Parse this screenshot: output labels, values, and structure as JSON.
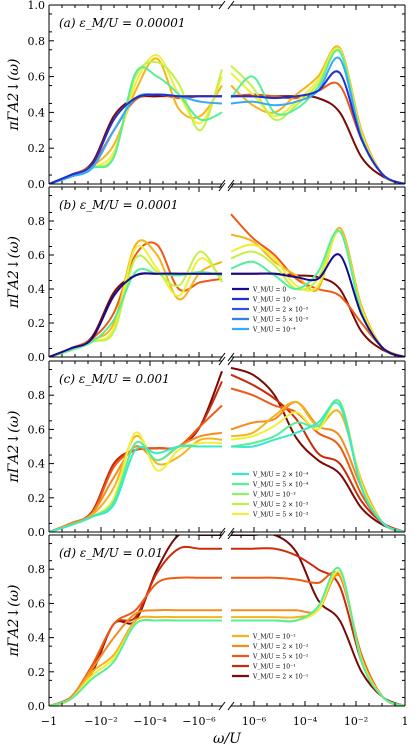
{
  "chart_data": {
    "type": "line",
    "xlabel": "ω/U",
    "ylabel": "πΓA_{2↓}(ω)",
    "ylim": [
      0.0,
      1.0
    ],
    "x_scale": "symmetric-log (split axis with break)",
    "x_ticks_left": [
      "−1",
      "−10⁻²",
      "−10⁻⁴",
      "−10⁻⁶"
    ],
    "x_ticks_right": [
      "10⁻⁶",
      "10⁻⁴",
      "10⁻²",
      "1"
    ],
    "y_ticks_top": [
      "0.0",
      "0.2",
      "0.4",
      "0.6",
      "0.8",
      "1.0"
    ],
    "y_ticks": [
      "0.0",
      "0.2",
      "0.4",
      "0.6",
      "0.8"
    ],
    "series_colors": {
      "V_M/U = 0": "#1a0a8c",
      "V_M/U = 10⁻⁵": "#1f2fd0",
      "V_M/U = 2 × 10⁻⁵": "#2a55e6",
      "V_M/U = 5 × 10⁻⁵": "#2f80f0",
      "V_M/U = 10⁻⁴": "#3aa8f5",
      "V_M/U = 2 × 10⁻⁴": "#3be8c8",
      "V_M/U = 5 × 10⁻⁴": "#58ee9a",
      "V_M/U = 10⁻³": "#8cf26a",
      "V_M/U = 2 × 10⁻³": "#c2f24a",
      "V_M/U = 5 × 10⁻³": "#f0f03a",
      "V_M/U = 10⁻²": "#f5b41e",
      "V_M/U = 2 × 10⁻²": "#f58c1e",
      "V_M/U = 5 × 10⁻²": "#ee5a14",
      "V_M/U = 10⁻¹": "#cc2a08",
      "V_M/U = 2 × 10⁻¹": "#7a0a06"
    },
    "panels": [
      {
        "label": "(a) ε_M/U = 0.00001",
        "legend": [],
        "series": [
          {
            "color": "#7a0a06",
            "left": [
              0.0,
              0.05,
              0.12,
              0.38,
              0.48,
              0.49,
              0.49,
              0.49,
              0.49
            ],
            "right": [
              0.49,
              0.49,
              0.49,
              0.49,
              0.48,
              0.4,
              0.15,
              0.04,
              0.0
            ]
          },
          {
            "color": "#ee5a14",
            "left": [
              0.0,
              0.05,
              0.11,
              0.3,
              0.47,
              0.5,
              0.48,
              0.49,
              0.49
            ],
            "right": [
              0.49,
              0.5,
              0.49,
              0.48,
              0.52,
              0.55,
              0.25,
              0.05,
              0.0
            ]
          },
          {
            "color": "#f5b41e",
            "left": [
              0.0,
              0.04,
              0.1,
              0.22,
              0.52,
              0.7,
              0.42,
              0.38,
              0.55
            ],
            "right": [
              0.55,
              0.44,
              0.4,
              0.5,
              0.6,
              0.76,
              0.3,
              0.05,
              0.0
            ]
          },
          {
            "color": "#f0f03a",
            "left": [
              0.0,
              0.04,
              0.09,
              0.18,
              0.56,
              0.72,
              0.5,
              0.34,
              0.6
            ],
            "right": [
              0.62,
              0.5,
              0.38,
              0.46,
              0.58,
              0.75,
              0.28,
              0.05,
              0.0
            ]
          },
          {
            "color": "#c2f24a",
            "left": [
              0.0,
              0.04,
              0.09,
              0.16,
              0.6,
              0.68,
              0.56,
              0.3,
              0.64
            ],
            "right": [
              0.66,
              0.54,
              0.36,
              0.44,
              0.56,
              0.74,
              0.27,
              0.05,
              0.0
            ]
          },
          {
            "color": "#58ee9a",
            "left": [
              0.0,
              0.04,
              0.09,
              0.15,
              0.62,
              0.6,
              0.5,
              0.36,
              0.4
            ],
            "right": [
              0.48,
              0.6,
              0.4,
              0.42,
              0.54,
              0.74,
              0.26,
              0.05,
              0.0
            ]
          },
          {
            "color": "#3aa8f5",
            "left": [
              0.0,
              0.04,
              0.09,
              0.3,
              0.48,
              0.5,
              0.49,
              0.46,
              0.45
            ],
            "right": [
              0.45,
              0.46,
              0.44,
              0.46,
              0.52,
              0.7,
              0.26,
              0.05,
              0.0
            ]
          },
          {
            "color": "#1f2fd0",
            "left": [
              0.0,
              0.05,
              0.11,
              0.36,
              0.48,
              0.5,
              0.49,
              0.49,
              0.49
            ],
            "right": [
              0.49,
              0.49,
              0.48,
              0.49,
              0.52,
              0.62,
              0.25,
              0.05,
              0.0
            ]
          }
        ]
      },
      {
        "label": "(b) ε_M/U = 0.0001",
        "legend": [
          "V_M/U = 0",
          "V_M/U = 10⁻⁵",
          "V_M/U = 2 × 10⁻⁵",
          "V_M/U = 5 × 10⁻⁵",
          "V_M/U = 10⁻⁴"
        ],
        "series": [
          {
            "color": "#7a0a06",
            "left": [
              0.0,
              0.05,
              0.12,
              0.38,
              0.48,
              0.49,
              0.49,
              0.49,
              0.49
            ],
            "right": [
              0.49,
              0.49,
              0.49,
              0.48,
              0.47,
              0.4,
              0.15,
              0.04,
              0.0
            ]
          },
          {
            "color": "#ee5a14",
            "left": [
              0.0,
              0.05,
              0.11,
              0.26,
              0.6,
              0.66,
              0.4,
              0.44,
              0.46
            ],
            "right": [
              0.84,
              0.7,
              0.6,
              0.46,
              0.4,
              0.36,
              0.2,
              0.05,
              0.0
            ]
          },
          {
            "color": "#f5b41e",
            "left": [
              0.0,
              0.04,
              0.1,
              0.2,
              0.66,
              0.6,
              0.34,
              0.5,
              0.56
            ],
            "right": [
              0.72,
              0.68,
              0.56,
              0.48,
              0.4,
              0.76,
              0.3,
              0.05,
              0.0
            ]
          },
          {
            "color": "#f0f03a",
            "left": [
              0.0,
              0.04,
              0.09,
              0.17,
              0.64,
              0.52,
              0.36,
              0.58,
              0.46
            ],
            "right": [
              0.62,
              0.66,
              0.58,
              0.42,
              0.42,
              0.74,
              0.28,
              0.05,
              0.0
            ]
          },
          {
            "color": "#c2f24a",
            "left": [
              0.0,
              0.04,
              0.09,
              0.15,
              0.58,
              0.5,
              0.42,
              0.62,
              0.44
            ],
            "right": [
              0.58,
              0.62,
              0.54,
              0.4,
              0.46,
              0.74,
              0.27,
              0.05,
              0.0
            ]
          },
          {
            "color": "#58ee9a",
            "left": [
              0.0,
              0.04,
              0.09,
              0.22,
              0.5,
              0.49,
              0.48,
              0.5,
              0.48
            ],
            "right": [
              0.52,
              0.56,
              0.48,
              0.4,
              0.5,
              0.74,
              0.26,
              0.05,
              0.0
            ]
          },
          {
            "color": "#1a0a8c",
            "left": [
              0.0,
              0.05,
              0.11,
              0.36,
              0.48,
              0.49,
              0.49,
              0.49,
              0.49
            ],
            "right": [
              0.49,
              0.49,
              0.49,
              0.47,
              0.46,
              0.6,
              0.25,
              0.05,
              0.0
            ]
          }
        ]
      },
      {
        "label": "(c) ε_M/U = 0.001",
        "legend": [
          "V_M/U = 2 × 10⁻⁴",
          "V_M/U = 5 × 10⁻⁴",
          "V_M/U = 10⁻³",
          "V_M/U = 2 × 10⁻³",
          "V_M/U = 5 × 10⁻³"
        ],
        "series": [
          {
            "color": "#7a0a06",
            "left": [
              0.0,
              0.05,
              0.12,
              0.4,
              0.48,
              0.49,
              0.5,
              0.62,
              0.94
            ],
            "right": [
              0.96,
              0.92,
              0.8,
              0.55,
              0.42,
              0.34,
              0.14,
              0.04,
              0.0
            ]
          },
          {
            "color": "#cc2a08",
            "left": [
              0.0,
              0.05,
              0.12,
              0.4,
              0.48,
              0.49,
              0.5,
              0.62,
              0.88
            ],
            "right": [
              0.92,
              0.86,
              0.78,
              0.66,
              0.46,
              0.4,
              0.18,
              0.05,
              0.0
            ]
          },
          {
            "color": "#ee5a14",
            "left": [
              0.0,
              0.05,
              0.11,
              0.38,
              0.48,
              0.49,
              0.5,
              0.62,
              0.74
            ],
            "right": [
              0.84,
              0.8,
              0.74,
              0.7,
              0.58,
              0.5,
              0.22,
              0.05,
              0.0
            ]
          },
          {
            "color": "#f58c1e",
            "left": [
              0.0,
              0.05,
              0.11,
              0.32,
              0.5,
              0.42,
              0.5,
              0.56,
              0.58
            ],
            "right": [
              0.6,
              0.64,
              0.66,
              0.76,
              0.62,
              0.56,
              0.26,
              0.05,
              0.0
            ]
          },
          {
            "color": "#f5b41e",
            "left": [
              0.0,
              0.04,
              0.1,
              0.26,
              0.56,
              0.4,
              0.44,
              0.54,
              0.54
            ],
            "right": [
              0.56,
              0.58,
              0.68,
              0.76,
              0.62,
              0.7,
              0.3,
              0.05,
              0.0
            ]
          },
          {
            "color": "#f0f03a",
            "left": [
              0.0,
              0.04,
              0.09,
              0.2,
              0.58,
              0.36,
              0.48,
              0.52,
              0.52
            ],
            "right": [
              0.54,
              0.56,
              0.62,
              0.7,
              0.6,
              0.76,
              0.28,
              0.05,
              0.0
            ]
          },
          {
            "color": "#58ee9a",
            "left": [
              0.0,
              0.04,
              0.09,
              0.18,
              0.52,
              0.42,
              0.5,
              0.5,
              0.5
            ],
            "right": [
              0.5,
              0.52,
              0.56,
              0.64,
              0.62,
              0.76,
              0.26,
              0.05,
              0.0
            ]
          },
          {
            "color": "#3be8c8",
            "left": [
              0.0,
              0.04,
              0.09,
              0.16,
              0.48,
              0.46,
              0.5,
              0.5,
              0.5
            ],
            "right": [
              0.5,
              0.5,
              0.54,
              0.58,
              0.64,
              0.74,
              0.26,
              0.05,
              0.0
            ]
          }
        ]
      },
      {
        "label": "(d) ε_M/U = 0.01",
        "legend": [
          "V_M/U = 10⁻²",
          "V_M/U = 2 × 10⁻²",
          "V_M/U = 5 × 10⁻²",
          "V_M/U = 10⁻¹",
          "V_M/U = 2 × 10⁻¹"
        ],
        "series": [
          {
            "color": "#7a0a06",
            "left": [
              0.0,
              0.05,
              0.2,
              0.48,
              0.5,
              0.8,
              1.0,
              1.0,
              1.0
            ],
            "right": [
              1.0,
              1.0,
              1.0,
              0.9,
              0.62,
              0.5,
              0.2,
              0.05,
              0.0
            ]
          },
          {
            "color": "#cc2a08",
            "left": [
              0.0,
              0.05,
              0.22,
              0.48,
              0.52,
              0.78,
              0.92,
              0.92,
              0.92
            ],
            "right": [
              0.92,
              0.92,
              0.92,
              0.88,
              0.8,
              0.7,
              0.26,
              0.05,
              0.0
            ]
          },
          {
            "color": "#ee5a14",
            "left": [
              0.0,
              0.05,
              0.24,
              0.48,
              0.56,
              0.72,
              0.75,
              0.75,
              0.75
            ],
            "right": [
              0.75,
              0.75,
              0.75,
              0.74,
              0.72,
              0.76,
              0.3,
              0.05,
              0.0
            ]
          },
          {
            "color": "#f58c1e",
            "left": [
              0.0,
              0.05,
              0.22,
              0.4,
              0.54,
              0.56,
              0.56,
              0.56,
              0.56
            ],
            "right": [
              0.56,
              0.56,
              0.56,
              0.56,
              0.56,
              0.76,
              0.28,
              0.05,
              0.0
            ]
          },
          {
            "color": "#f5b41e",
            "left": [
              0.0,
              0.04,
              0.2,
              0.3,
              0.5,
              0.52,
              0.52,
              0.52,
              0.52
            ],
            "right": [
              0.52,
              0.52,
              0.52,
              0.52,
              0.56,
              0.78,
              0.28,
              0.05,
              0.0
            ]
          },
          {
            "color": "#f0f03a",
            "left": [
              0.0,
              0.04,
              0.18,
              0.28,
              0.48,
              0.5,
              0.5,
              0.5,
              0.5
            ],
            "right": [
              0.5,
              0.5,
              0.5,
              0.5,
              0.56,
              0.78,
              0.27,
              0.05,
              0.0
            ]
          },
          {
            "color": "#58ee9a",
            "left": [
              0.0,
              0.04,
              0.16,
              0.26,
              0.48,
              0.5,
              0.5,
              0.5,
              0.5
            ],
            "right": [
              0.5,
              0.5,
              0.5,
              0.5,
              0.58,
              0.8,
              0.26,
              0.05,
              0.0
            ]
          }
        ]
      }
    ]
  }
}
